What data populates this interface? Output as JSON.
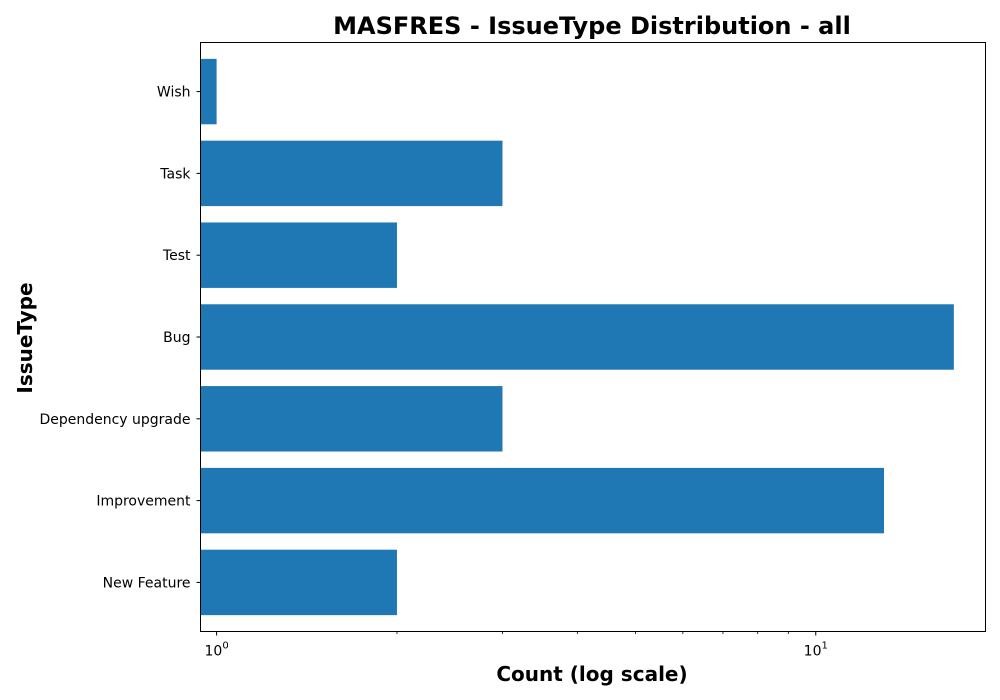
{
  "chart_data": {
    "type": "bar",
    "orientation": "horizontal",
    "title": "MASFRES - IssueType Distribution - all",
    "xlabel": "Count (log scale)",
    "ylabel": "IssueType",
    "x_scale": "log",
    "xlim": [
      0.94,
      19.2
    ],
    "x_major_ticks": [
      {
        "value": 1,
        "base": "10",
        "exp": "0"
      },
      {
        "value": 10,
        "base": "10",
        "exp": "1"
      }
    ],
    "x_minor_ticks": [
      2,
      3,
      4,
      5,
      6,
      7,
      8,
      9
    ],
    "categories": [
      "New Feature",
      "Improvement",
      "Dependency upgrade",
      "Bug",
      "Test",
      "Task",
      "Wish"
    ],
    "values": [
      2,
      13,
      3,
      17,
      2,
      3,
      1
    ],
    "bar_color": "#1f77b4",
    "grid": false,
    "legend": false
  }
}
